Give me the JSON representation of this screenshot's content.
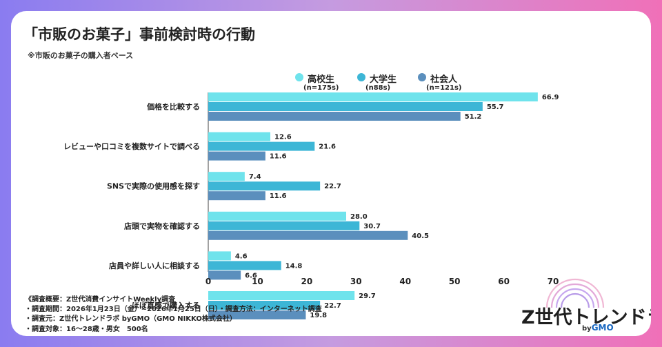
{
  "title": "「市販のお菓子」事前検討時の行動",
  "subtitle": "※市販のお菓子の購入者ベース",
  "legend": [
    {
      "name": "高校生",
      "count": "(n=175s)",
      "color": "#6fe3ec"
    },
    {
      "name": "大学生",
      "count": "(n88s)",
      "color": "#3db6d6"
    },
    {
      "name": "社会人",
      "count": "(n=121s)",
      "color": "#5b8fbd"
    }
  ],
  "chart_data": {
    "type": "bar",
    "orientation": "horizontal",
    "categories": [
      "価格を比較する",
      "レビューや口コミを複数サイトで調べる",
      "SNSで実際の使用感を探す",
      "店頭で実物を確認する",
      "店員や詳しい人に相談する",
      "ほぼ直感で購入する"
    ],
    "series": [
      {
        "name": "高校生",
        "values": [
          66.9,
          12.6,
          7.4,
          28.0,
          4.6,
          29.7
        ],
        "labels": [
          "66.9",
          "12.6",
          "7.4",
          "28.0",
          "4.6",
          "29.7"
        ]
      },
      {
        "name": "大学生",
        "values": [
          55.7,
          21.6,
          22.7,
          30.7,
          14.8,
          22.7
        ],
        "labels": [
          "55.7",
          "21.6",
          "22.7",
          "30.7",
          "14.8",
          "22.7"
        ]
      },
      {
        "name": "社会人",
        "values": [
          51.2,
          11.6,
          11.6,
          40.5,
          6.6,
          19.8
        ],
        "labels": [
          "51.2",
          "11.6",
          "11.6",
          "40.5",
          "6.6",
          "19.8"
        ]
      }
    ],
    "xlim": [
      0,
      70
    ],
    "xticks": [
      "0",
      "10",
      "20",
      "30",
      "40",
      "50",
      "60",
      "70"
    ],
    "title": "「市販のお菓子」事前検討時の行動",
    "xlabel": "",
    "ylabel": "",
    "legend_position": "top-right"
  },
  "notes": [
    "《調査概要：Z世代消費インサイトWeekly調査",
    "・調査期間：2026年1月23日（金）~2026年1月25日（日）・調査方法：インターネット調査",
    "・調査元：Z世代トレンドラボ byGMO（GMO NIKKO株式会社）",
    "・調査対象：16〜28歳・男女　500名"
  ],
  "logo": {
    "text": "Z世代トレンドラボ",
    "by": "by",
    "gmo": "GMO"
  }
}
